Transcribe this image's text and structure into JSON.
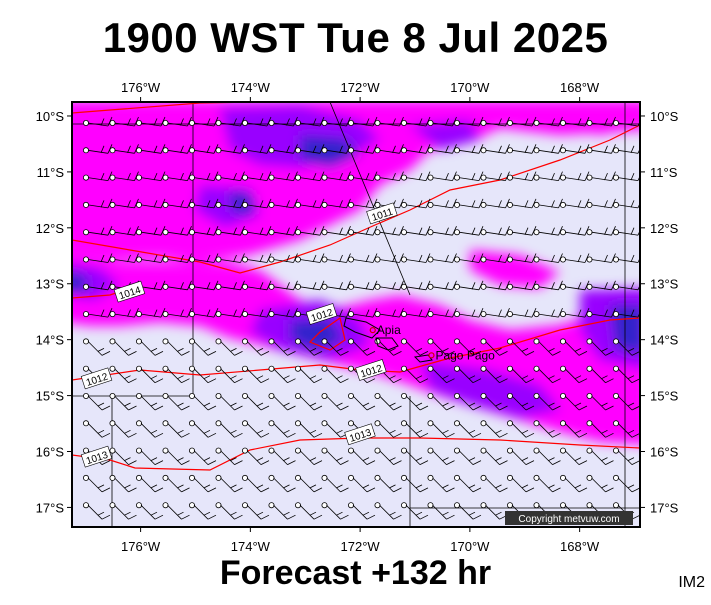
{
  "title": "1900 WST Tue 8 Jul 2025",
  "forecast_label": "Forecast +132 hr",
  "product_code": "IM2",
  "copyright": "Copyright metvuw.com",
  "colors": {
    "background": "#e6e6fa",
    "rain_light": "#ff00ff",
    "rain_medium": "#9900ff",
    "rain_heavy": "#3322cc",
    "isobar": "#ff0000",
    "wind": "#000000"
  },
  "axes": {
    "lon_labels": [
      "176°W",
      "174°W",
      "172°W",
      "170°W",
      "168°W"
    ],
    "lat_labels": [
      "10°S",
      "11°S",
      "12°S",
      "13°S",
      "14°S",
      "15°S",
      "16°S",
      "17°S"
    ]
  },
  "places": [
    {
      "name": "Apia",
      "lon": -171.77,
      "lat": -13.83
    },
    {
      "name": "Pago Pago",
      "lon": -170.7,
      "lat": -14.28
    }
  ],
  "isobars": [
    {
      "label": "1011",
      "lon": -171.6,
      "lat": -11.75
    },
    {
      "label": "1012",
      "lon": -172.7,
      "lat": -13.55
    },
    {
      "label": "1012",
      "lon": -171.8,
      "lat": -14.55
    },
    {
      "label": "1012",
      "lon": -176.8,
      "lat": -14.7
    },
    {
      "label": "1013",
      "lon": -172.0,
      "lat": -15.7
    },
    {
      "label": "1013",
      "lon": -176.8,
      "lat": -16.1
    },
    {
      "label": "1014",
      "lon": -176.2,
      "lat": -13.15
    }
  ],
  "wind": {
    "note_north": "east-northeast trades",
    "note_south": "east-southeast trades"
  }
}
